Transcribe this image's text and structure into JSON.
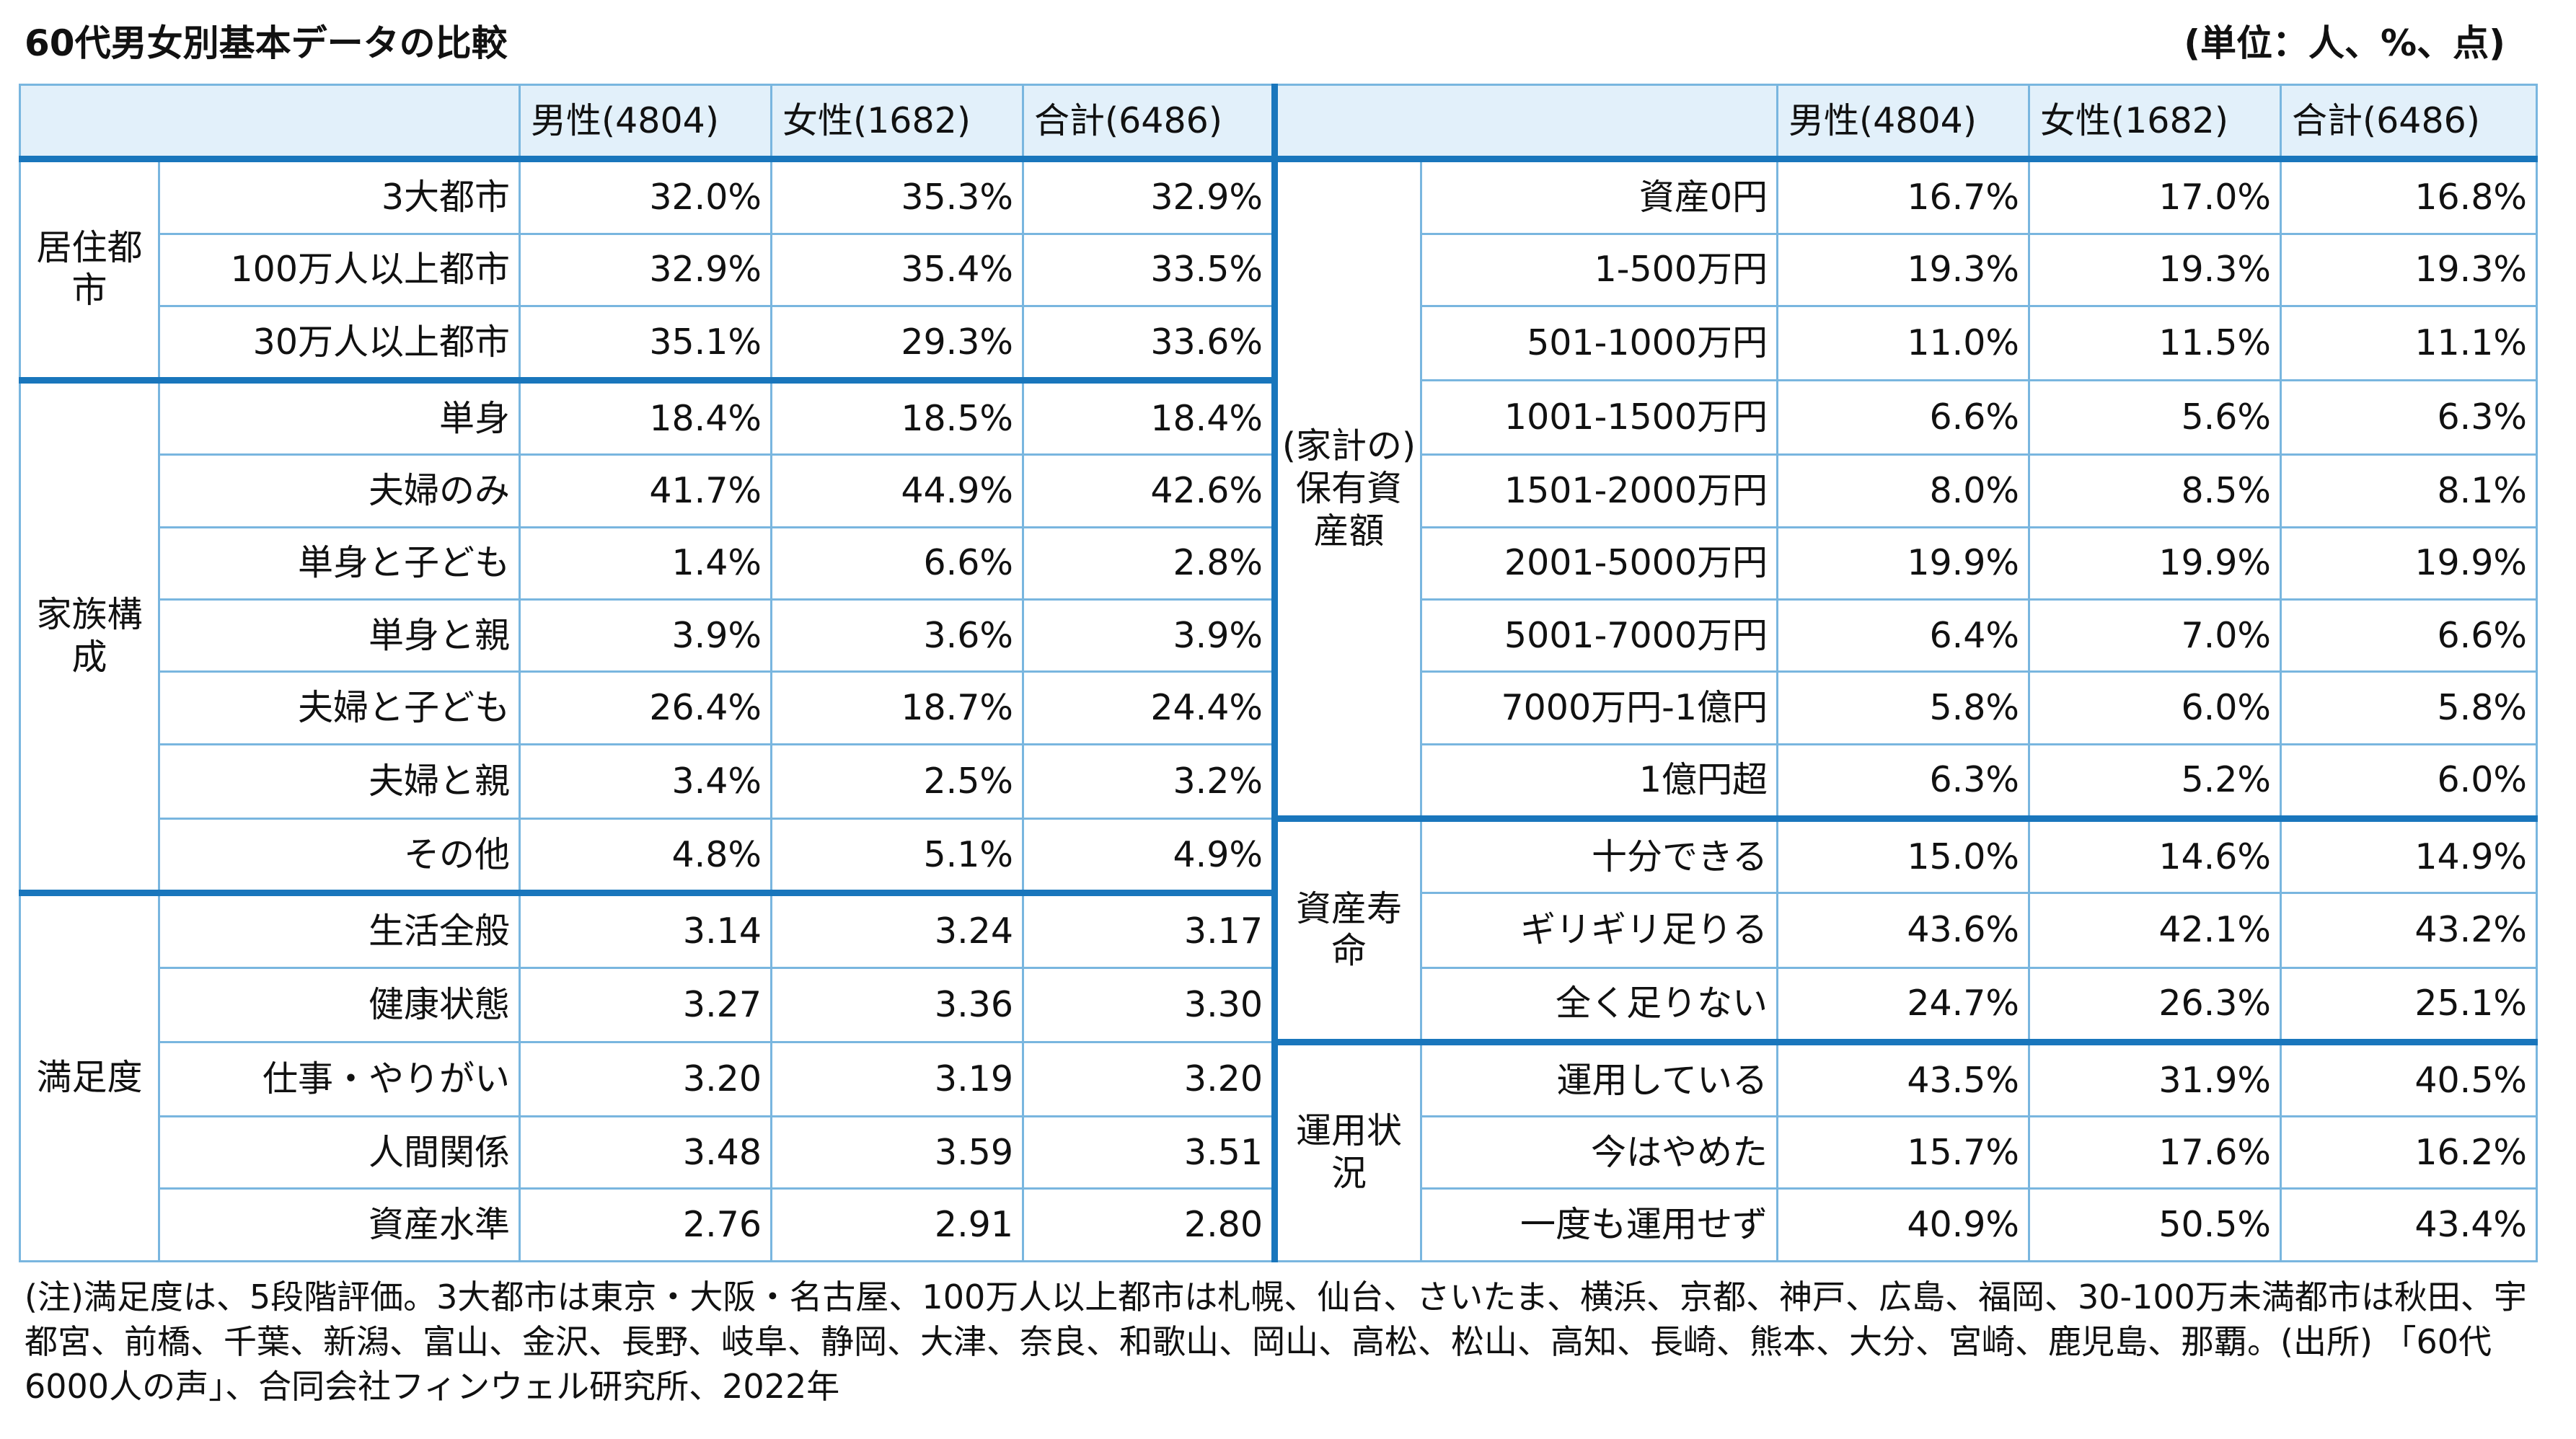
{
  "title": "60代男女別基本データの比較",
  "unit": "(単位：人、%、点)",
  "header": {
    "left": [
      "男性(4804)",
      "女性(1682)",
      "合計(6486)"
    ],
    "right": [
      "男性(4804)",
      "女性(1682)",
      "合計(6486)"
    ]
  },
  "left": {
    "g1": {
      "category": "居住都市",
      "rows": [
        {
          "label": "3大都市",
          "m": "32.0%",
          "f": "35.3%",
          "t": "32.9%"
        },
        {
          "label": "100万人以上都市",
          "m": "32.9%",
          "f": "35.4%",
          "t": "33.5%"
        },
        {
          "label": "30万人以上都市",
          "m": "35.1%",
          "f": "29.3%",
          "t": "33.6%"
        }
      ]
    },
    "g2": {
      "category": "家族構成",
      "rows": [
        {
          "label": "単身",
          "m": "18.4%",
          "f": "18.5%",
          "t": "18.4%"
        },
        {
          "label": "夫婦のみ",
          "m": "41.7%",
          "f": "44.9%",
          "t": "42.6%"
        },
        {
          "label": "単身と子ども",
          "m": "1.4%",
          "f": "6.6%",
          "t": "2.8%"
        },
        {
          "label": "単身と親",
          "m": "3.9%",
          "f": "3.6%",
          "t": "3.9%"
        },
        {
          "label": "夫婦と子ども",
          "m": "26.4%",
          "f": "18.7%",
          "t": "24.4%"
        },
        {
          "label": "夫婦と親",
          "m": "3.4%",
          "f": "2.5%",
          "t": "3.2%"
        },
        {
          "label": "その他",
          "m": "4.8%",
          "f": "5.1%",
          "t": "4.9%"
        }
      ]
    },
    "g3": {
      "category": "満足度",
      "rows": [
        {
          "label": "生活全般",
          "m": "3.14",
          "f": "3.24",
          "t": "3.17"
        },
        {
          "label": "健康状態",
          "m": "3.27",
          "f": "3.36",
          "t": "3.30"
        },
        {
          "label": "仕事・やりがい",
          "m": "3.20",
          "f": "3.19",
          "t": "3.20"
        },
        {
          "label": "人間関係",
          "m": "3.48",
          "f": "3.59",
          "t": "3.51"
        },
        {
          "label": "資産水準",
          "m": "2.76",
          "f": "2.91",
          "t": "2.80"
        }
      ]
    }
  },
  "right": {
    "g1": {
      "category": "(家計の)保有資産額",
      "rows": [
        {
          "label": "資産0円",
          "m": "16.7%",
          "f": "17.0%",
          "t": "16.8%"
        },
        {
          "label": "1‐500万円",
          "m": "19.3%",
          "f": "19.3%",
          "t": "19.3%"
        },
        {
          "label": "501‐1000万円",
          "m": "11.0%",
          "f": "11.5%",
          "t": "11.1%"
        },
        {
          "label": "1001‐1500万円",
          "m": "6.6%",
          "f": "5.6%",
          "t": "6.3%"
        },
        {
          "label": "1501‐2000万円",
          "m": "8.0%",
          "f": "8.5%",
          "t": "8.1%"
        },
        {
          "label": "2001‐5000万円",
          "m": "19.9%",
          "f": "19.9%",
          "t": "19.9%"
        },
        {
          "label": "5001‐7000万円",
          "m": "6.4%",
          "f": "7.0%",
          "t": "6.6%"
        },
        {
          "label": "7000万円‐1億円",
          "m": "5.8%",
          "f": "6.0%",
          "t": "5.8%"
        },
        {
          "label": "1億円超",
          "m": "6.3%",
          "f": "5.2%",
          "t": "6.0%"
        }
      ]
    },
    "g2": {
      "category": "資産寿命",
      "rows": [
        {
          "label": "十分できる",
          "m": "15.0%",
          "f": "14.6%",
          "t": "14.9%"
        },
        {
          "label": "ギリギリ足りる",
          "m": "43.6%",
          "f": "42.1%",
          "t": "43.2%"
        },
        {
          "label": "全く足りない",
          "m": "24.7%",
          "f": "26.3%",
          "t": "25.1%"
        }
      ]
    },
    "g3": {
      "category": "運用状況",
      "rows": [
        {
          "label": "運用している",
          "m": "43.5%",
          "f": "31.9%",
          "t": "40.5%"
        },
        {
          "label": "今はやめた",
          "m": "15.7%",
          "f": "17.6%",
          "t": "16.2%"
        },
        {
          "label": "一度も運用せず",
          "m": "40.9%",
          "f": "50.5%",
          "t": "43.4%"
        }
      ]
    }
  },
  "note": "(注)満足度は、5段階評価。3大都市は東京・大阪・名古屋、100万人以上都市は札幌、仙台、さいたま、横浜、京都、神戸、広島、福岡、30-100万未満都市は秋田、宇都宮、前橋、千葉、新潟、富山、金沢、長野、岐阜、静岡、大津、奈良、和歌山、岡山、高松、松山、高知、長崎、熊本、大分、宮崎、鹿児島、那覇。(出所) 「60代6000人の声」、合同会社フィンウェル研究所、2022年"
}
